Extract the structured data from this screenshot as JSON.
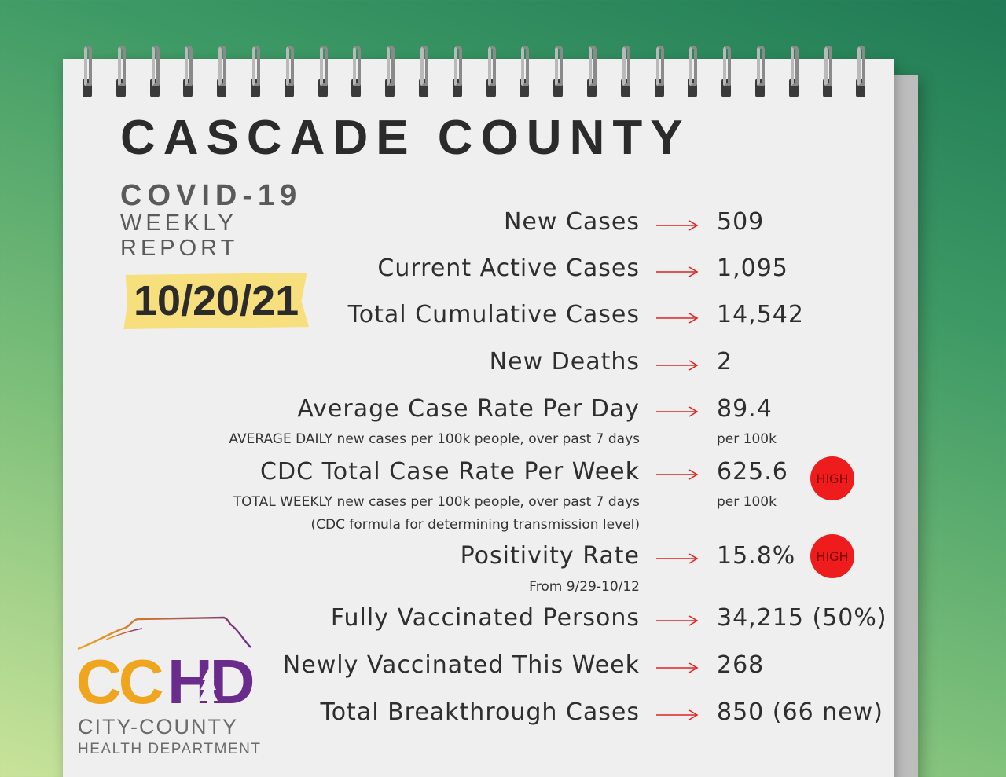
{
  "header": {
    "title": "CASCADE COUNTY",
    "subtitle": "COVID-19",
    "sub_line1": "WEEKLY",
    "sub_line2": "REPORT",
    "date": "10/20/21"
  },
  "stats": [
    {
      "label": "New Cases",
      "value": "509"
    },
    {
      "label": "Current Active Cases",
      "value": "1,095"
    },
    {
      "label": "Total Cumulative Cases",
      "value": "14,542"
    },
    {
      "label": "New Deaths",
      "value": "2"
    },
    {
      "label": "Average Case Rate Per Day",
      "value": "89.4",
      "note": "AVERAGE DAILY new cases per 100k people, over past 7 days",
      "unit": "per 100k"
    },
    {
      "label": "CDC Total Case Rate Per Week",
      "value": "625.6",
      "note": "TOTAL WEEKLY new cases per 100k people, over past 7 days",
      "note2": "(CDC formula for determining transmission level)",
      "unit": "per 100k",
      "badge": "HIGH"
    },
    {
      "label": "Positivity Rate",
      "value": "15.8%",
      "note": "From 9/29-10/12",
      "badge": "HIGH"
    },
    {
      "label": "Fully Vaccinated Persons",
      "value": "34,215 (50%)"
    },
    {
      "label": "Newly Vaccinated This Week",
      "value": "268"
    },
    {
      "label": "Total Breakthrough Cases",
      "value": "850 (66 new)"
    }
  ],
  "logo": {
    "letters_cc": "CC",
    "letters_hd": "HD",
    "line1": "CITY-COUNTY",
    "line2": "HEALTH DEPARTMENT"
  },
  "colors": {
    "arrow": "#e02424",
    "badge": "#ee1c1c",
    "date_highlight": "#f7df7e",
    "logo_orange": "#f0a51e",
    "logo_purple": "#6a2c8c"
  }
}
